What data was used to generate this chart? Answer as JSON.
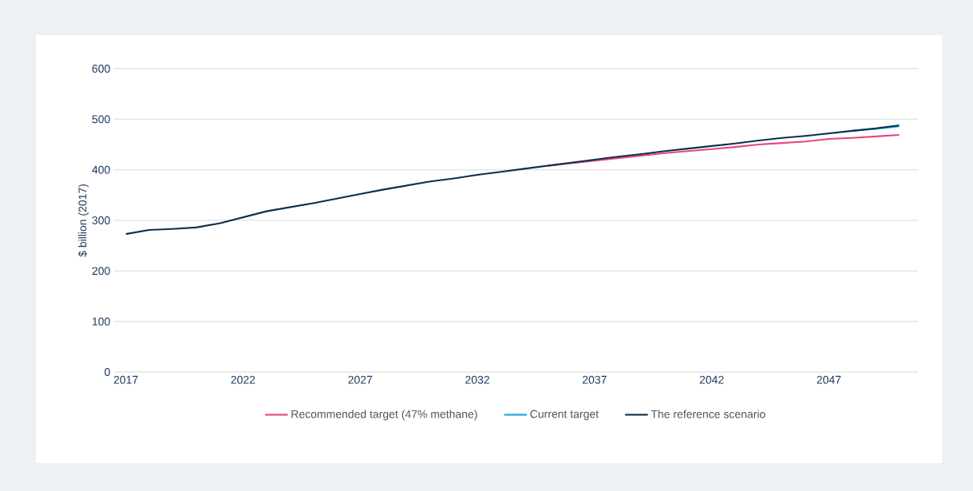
{
  "chart_data": {
    "type": "line",
    "ylabel": "$ billion (2017)",
    "x": [
      2017,
      2018,
      2019,
      2020,
      2021,
      2022,
      2023,
      2024,
      2025,
      2026,
      2027,
      2028,
      2029,
      2030,
      2031,
      2032,
      2033,
      2034,
      2035,
      2036,
      2037,
      2038,
      2039,
      2040,
      2041,
      2042,
      2043,
      2044,
      2045,
      2046,
      2047,
      2048,
      2049,
      2050
    ],
    "series": [
      {
        "name": "Recommended target (47% methane)",
        "color": "#e8467c",
        "values": [
          null,
          null,
          null,
          null,
          null,
          null,
          null,
          null,
          null,
          null,
          null,
          null,
          null,
          null,
          null,
          null,
          null,
          null,
          408,
          413,
          418,
          423,
          428,
          433,
          437,
          441,
          445,
          450,
          453,
          456,
          461,
          463,
          466,
          469
        ]
      },
      {
        "name": "Current target",
        "color": "#1aa7d4",
        "values": [
          null,
          null,
          null,
          null,
          null,
          null,
          null,
          null,
          null,
          null,
          null,
          null,
          null,
          null,
          null,
          null,
          null,
          null,
          null,
          null,
          null,
          null,
          null,
          null,
          null,
          null,
          null,
          null,
          null,
          null,
          null,
          477,
          481,
          486
        ]
      },
      {
        "name": "The reference scenario",
        "color": "#0d2f4f",
        "values": [
          273,
          281,
          283,
          286,
          294,
          306,
          318,
          326,
          334,
          343,
          352,
          361,
          369,
          377,
          383,
          390,
          396,
          402,
          408,
          414,
          420,
          426,
          431,
          437,
          442,
          447,
          452,
          458,
          463,
          467,
          472,
          477,
          482,
          488
        ]
      }
    ],
    "xlim": [
      2016.5,
      2050.8
    ],
    "ylim": [
      0,
      600
    ],
    "xticks": [
      2017,
      2022,
      2027,
      2032,
      2037,
      2042,
      2047
    ],
    "yticks": [
      0,
      100,
      200,
      300,
      400,
      500,
      600
    ],
    "grid": "y",
    "legend": "bottom",
    "marker": "none",
    "line_style": "solid"
  }
}
